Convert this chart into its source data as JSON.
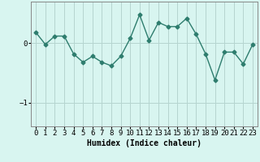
{
  "x": [
    0,
    1,
    2,
    3,
    4,
    5,
    6,
    7,
    8,
    9,
    10,
    11,
    12,
    13,
    14,
    15,
    16,
    17,
    18,
    19,
    20,
    21,
    22,
    23
  ],
  "y": [
    0.18,
    -0.02,
    0.12,
    0.12,
    -0.18,
    -0.32,
    -0.22,
    -0.32,
    -0.38,
    -0.22,
    0.08,
    0.48,
    0.05,
    0.35,
    0.28,
    0.28,
    0.42,
    0.15,
    -0.18,
    -0.62,
    -0.15,
    -0.15,
    -0.35,
    -0.02
  ],
  "line_color": "#2e7d6e",
  "marker": "D",
  "markersize": 2.5,
  "linewidth": 1.0,
  "bg_color": "#d8f5f0",
  "grid_color": "#b5d5d0",
  "xlabel": "Humidex (Indice chaleur)",
  "ylim": [
    -1.4,
    0.7
  ],
  "xlim": [
    -0.5,
    23.5
  ],
  "yticks": [
    -1,
    0
  ],
  "xticks": [
    0,
    1,
    2,
    3,
    4,
    5,
    6,
    7,
    8,
    9,
    10,
    11,
    12,
    13,
    14,
    15,
    16,
    17,
    18,
    19,
    20,
    21,
    22,
    23
  ],
  "xlabel_fontsize": 7,
  "tick_fontsize": 6.5,
  "spine_color": "#888888"
}
